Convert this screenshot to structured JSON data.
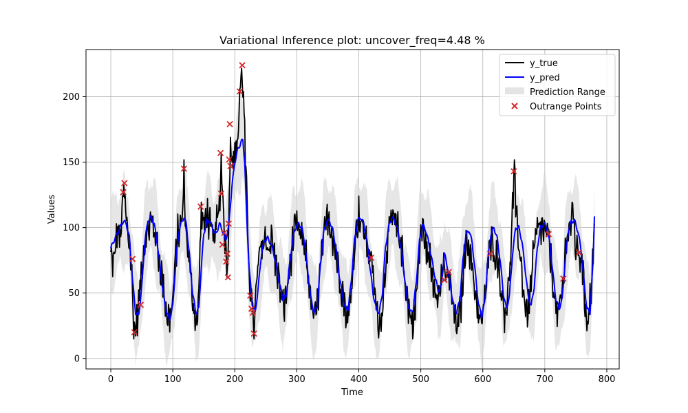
{
  "chart_data": {
    "type": "line",
    "title": "Variational Inference plot: uncover_freq=4.48 %",
    "xlabel": "Time",
    "ylabel": "Values",
    "xlim": [
      -40,
      820
    ],
    "ylim": [
      -8,
      236
    ],
    "xticks": [
      0,
      100,
      200,
      300,
      400,
      500,
      600,
      700,
      800
    ],
    "yticks": [
      0,
      50,
      100,
      150,
      200
    ],
    "grid": true,
    "legend_position": "top-right",
    "colors": {
      "y_true": "#000000",
      "y_pred": "#0000ff",
      "range": "#d9d9d9",
      "outrange": "#d62728"
    },
    "series": [
      {
        "name": "y_true",
        "kind": "line"
      },
      {
        "name": "y_pred",
        "kind": "line"
      },
      {
        "name": "Prediction Range",
        "kind": "band"
      },
      {
        "name": "Outrange Points",
        "kind": "scatter"
      }
    ],
    "true_anchors": [
      [
        0,
        78
      ],
      [
        5,
        72
      ],
      [
        10,
        98
      ],
      [
        15,
        90
      ],
      [
        19,
        115
      ],
      [
        21,
        130
      ],
      [
        24,
        110
      ],
      [
        28,
        95
      ],
      [
        33,
        72
      ],
      [
        37,
        25
      ],
      [
        40,
        22
      ],
      [
        44,
        35
      ],
      [
        48,
        60
      ],
      [
        52,
        80
      ],
      [
        56,
        92
      ],
      [
        60,
        98
      ],
      [
        65,
        105
      ],
      [
        70,
        100
      ],
      [
        75,
        85
      ],
      [
        80,
        70
      ],
      [
        85,
        55
      ],
      [
        90,
        35
      ],
      [
        95,
        30
      ],
      [
        100,
        45
      ],
      [
        105,
        80
      ],
      [
        108,
        95
      ],
      [
        112,
        100
      ],
      [
        116,
        110
      ],
      [
        118,
        145
      ],
      [
        120,
        105
      ],
      [
        125,
        80
      ],
      [
        130,
        55
      ],
      [
        135,
        35
      ],
      [
        140,
        25
      ],
      [
        143,
        70
      ],
      [
        146,
        113
      ],
      [
        150,
        100
      ],
      [
        155,
        112
      ],
      [
        160,
        100
      ],
      [
        165,
        90
      ],
      [
        170,
        100
      ],
      [
        175,
        115
      ],
      [
        178,
        150
      ],
      [
        181,
        120
      ],
      [
        185,
        85
      ],
      [
        188,
        70
      ],
      [
        190,
        100
      ],
      [
        193,
        170
      ],
      [
        197,
        150
      ],
      [
        200,
        155
      ],
      [
        205,
        170
      ],
      [
        208,
        200
      ],
      [
        211,
        222
      ],
      [
        214,
        200
      ],
      [
        217,
        155
      ],
      [
        220,
        110
      ],
      [
        224,
        60
      ],
      [
        228,
        40
      ],
      [
        231,
        20
      ],
      [
        235,
        55
      ],
      [
        240,
        80
      ],
      [
        245,
        88
      ],
      [
        250,
        90
      ],
      [
        255,
        85
      ],
      [
        260,
        92
      ],
      [
        265,
        75
      ],
      [
        270,
        65
      ],
      [
        275,
        45
      ],
      [
        280,
        40
      ],
      [
        285,
        55
      ],
      [
        290,
        75
      ],
      [
        295,
        95
      ],
      [
        300,
        100
      ],
      [
        305,
        95
      ],
      [
        310,
        88
      ],
      [
        315,
        80
      ],
      [
        320,
        55
      ],
      [
        325,
        35
      ],
      [
        330,
        30
      ],
      [
        335,
        50
      ],
      [
        340,
        80
      ],
      [
        345,
        95
      ],
      [
        350,
        110
      ],
      [
        355,
        100
      ],
      [
        360,
        88
      ],
      [
        365,
        75
      ],
      [
        370,
        60
      ],
      [
        375,
        48
      ],
      [
        380,
        32
      ],
      [
        385,
        35
      ],
      [
        390,
        65
      ],
      [
        395,
        95
      ],
      [
        400,
        110
      ],
      [
        405,
        100
      ],
      [
        410,
        95
      ],
      [
        415,
        82
      ],
      [
        420,
        76
      ],
      [
        425,
        55
      ],
      [
        430,
        30
      ],
      [
        435,
        28
      ],
      [
        440,
        50
      ],
      [
        445,
        85
      ],
      [
        450,
        100
      ],
      [
        455,
        108
      ],
      [
        460,
        100
      ],
      [
        465,
        95
      ],
      [
        470,
        80
      ],
      [
        475,
        60
      ],
      [
        480,
        40
      ],
      [
        485,
        28
      ],
      [
        490,
        32
      ],
      [
        495,
        60
      ],
      [
        500,
        100
      ],
      [
        505,
        95
      ],
      [
        510,
        80
      ],
      [
        515,
        75
      ],
      [
        520,
        60
      ],
      [
        525,
        55
      ],
      [
        530,
        45
      ],
      [
        535,
        75
      ],
      [
        538,
        62
      ],
      [
        541,
        60
      ],
      [
        545,
        66
      ],
      [
        550,
        45
      ],
      [
        555,
        30
      ],
      [
        560,
        25
      ],
      [
        565,
        40
      ],
      [
        570,
        75
      ],
      [
        575,
        95
      ],
      [
        580,
        80
      ],
      [
        585,
        60
      ],
      [
        590,
        45
      ],
      [
        595,
        28
      ],
      [
        600,
        30
      ],
      [
        605,
        55
      ],
      [
        610,
        80
      ],
      [
        615,
        90
      ],
      [
        620,
        80
      ],
      [
        625,
        75
      ],
      [
        630,
        50
      ],
      [
        635,
        35
      ],
      [
        640,
        45
      ],
      [
        645,
        80
      ],
      [
        648,
        115
      ],
      [
        651,
        143
      ],
      [
        654,
        105
      ],
      [
        658,
        90
      ],
      [
        662,
        70
      ],
      [
        666,
        50
      ],
      [
        670,
        35
      ],
      [
        675,
        40
      ],
      [
        680,
        70
      ],
      [
        685,
        90
      ],
      [
        690,
        100
      ],
      [
        695,
        100
      ],
      [
        700,
        95
      ],
      [
        706,
        93
      ],
      [
        710,
        75
      ],
      [
        715,
        50
      ],
      [
        720,
        30
      ],
      [
        725,
        40
      ],
      [
        730,
        60
      ],
      [
        735,
        95
      ],
      [
        740,
        100
      ],
      [
        745,
        110
      ],
      [
        750,
        85
      ],
      [
        755,
        80
      ],
      [
        760,
        75
      ],
      [
        765,
        40
      ],
      [
        770,
        30
      ],
      [
        775,
        55
      ],
      [
        780,
        100
      ]
    ],
    "pred_anchors": [
      [
        0,
        84
      ],
      [
        5,
        90
      ],
      [
        10,
        95
      ],
      [
        15,
        100
      ],
      [
        20,
        105
      ],
      [
        25,
        103
      ],
      [
        30,
        92
      ],
      [
        35,
        60
      ],
      [
        40,
        35
      ],
      [
        45,
        33
      ],
      [
        50,
        55
      ],
      [
        55,
        90
      ],
      [
        60,
        105
      ],
      [
        65,
        108
      ],
      [
        70,
        103
      ],
      [
        75,
        88
      ],
      [
        80,
        68
      ],
      [
        85,
        48
      ],
      [
        90,
        35
      ],
      [
        95,
        30
      ],
      [
        100,
        40
      ],
      [
        105,
        75
      ],
      [
        110,
        98
      ],
      [
        115,
        105
      ],
      [
        118,
        108
      ],
      [
        122,
        102
      ],
      [
        127,
        78
      ],
      [
        132,
        50
      ],
      [
        137,
        35
      ],
      [
        142,
        38
      ],
      [
        146,
        70
      ],
      [
        150,
        95
      ],
      [
        155,
        105
      ],
      [
        160,
        105
      ],
      [
        165,
        98
      ],
      [
        170,
        95
      ],
      [
        175,
        103
      ],
      [
        180,
        98
      ],
      [
        185,
        90
      ],
      [
        190,
        100
      ],
      [
        195,
        130
      ],
      [
        200,
        150
      ],
      [
        205,
        160
      ],
      [
        210,
        165
      ],
      [
        213,
        167
      ],
      [
        216,
        150
      ],
      [
        219,
        110
      ],
      [
        223,
        70
      ],
      [
        228,
        42
      ],
      [
        233,
        35
      ],
      [
        238,
        55
      ],
      [
        243,
        80
      ],
      [
        248,
        90
      ],
      [
        253,
        92
      ],
      [
        258,
        88
      ],
      [
        263,
        80
      ],
      [
        268,
        68
      ],
      [
        273,
        55
      ],
      [
        278,
        45
      ],
      [
        283,
        48
      ],
      [
        288,
        70
      ],
      [
        293,
        90
      ],
      [
        298,
        100
      ],
      [
        303,
        103
      ],
      [
        308,
        100
      ],
      [
        313,
        88
      ],
      [
        318,
        65
      ],
      [
        323,
        45
      ],
      [
        328,
        35
      ],
      [
        333,
        40
      ],
      [
        338,
        70
      ],
      [
        343,
        95
      ],
      [
        348,
        105
      ],
      [
        353,
        105
      ],
      [
        358,
        98
      ],
      [
        363,
        85
      ],
      [
        368,
        65
      ],
      [
        373,
        50
      ],
      [
        378,
        38
      ],
      [
        383,
        38
      ],
      [
        388,
        60
      ],
      [
        393,
        90
      ],
      [
        398,
        105
      ],
      [
        403,
        108
      ],
      [
        408,
        103
      ],
      [
        413,
        90
      ],
      [
        418,
        70
      ],
      [
        423,
        50
      ],
      [
        428,
        38
      ],
      [
        433,
        35
      ],
      [
        438,
        50
      ],
      [
        443,
        85
      ],
      [
        448,
        100
      ],
      [
        453,
        108
      ],
      [
        458,
        105
      ],
      [
        463,
        98
      ],
      [
        468,
        85
      ],
      [
        473,
        65
      ],
      [
        478,
        45
      ],
      [
        483,
        35
      ],
      [
        488,
        38
      ],
      [
        493,
        60
      ],
      [
        498,
        90
      ],
      [
        503,
        102
      ],
      [
        508,
        98
      ],
      [
        513,
        88
      ],
      [
        518,
        75
      ],
      [
        523,
        62
      ],
      [
        528,
        52
      ],
      [
        533,
        55
      ],
      [
        538,
        80
      ],
      [
        543,
        70
      ],
      [
        548,
        55
      ],
      [
        553,
        40
      ],
      [
        558,
        35
      ],
      [
        563,
        45
      ],
      [
        568,
        75
      ],
      [
        573,
        95
      ],
      [
        578,
        98
      ],
      [
        583,
        88
      ],
      [
        588,
        65
      ],
      [
        593,
        42
      ],
      [
        598,
        32
      ],
      [
        603,
        42
      ],
      [
        608,
        75
      ],
      [
        613,
        95
      ],
      [
        618,
        100
      ],
      [
        623,
        92
      ],
      [
        628,
        75
      ],
      [
        633,
        50
      ],
      [
        638,
        38
      ],
      [
        643,
        48
      ],
      [
        648,
        80
      ],
      [
        653,
        100
      ],
      [
        658,
        100
      ],
      [
        663,
        90
      ],
      [
        668,
        70
      ],
      [
        673,
        48
      ],
      [
        678,
        40
      ],
      [
        683,
        55
      ],
      [
        688,
        85
      ],
      [
        693,
        100
      ],
      [
        698,
        103
      ],
      [
        703,
        100
      ],
      [
        708,
        88
      ],
      [
        713,
        65
      ],
      [
        718,
        45
      ],
      [
        723,
        38
      ],
      [
        728,
        45
      ],
      [
        733,
        75
      ],
      [
        738,
        98
      ],
      [
        743,
        105
      ],
      [
        748,
        105
      ],
      [
        753,
        98
      ],
      [
        758,
        85
      ],
      [
        763,
        60
      ],
      [
        768,
        38
      ],
      [
        773,
        35
      ],
      [
        778,
        75
      ],
      [
        780,
        110
      ]
    ],
    "outrange_points": [
      [
        20,
        127
      ],
      [
        22,
        134
      ],
      [
        35,
        76
      ],
      [
        38,
        20
      ],
      [
        48,
        41
      ],
      [
        118,
        145
      ],
      [
        145,
        116
      ],
      [
        177,
        157
      ],
      [
        178,
        126
      ],
      [
        180,
        87
      ],
      [
        183,
        96
      ],
      [
        186,
        74
      ],
      [
        188,
        80
      ],
      [
        189,
        62
      ],
      [
        190,
        103
      ],
      [
        191,
        152
      ],
      [
        192,
        179
      ],
      [
        193,
        147
      ],
      [
        208,
        204
      ],
      [
        212,
        224
      ],
      [
        225,
        48
      ],
      [
        227,
        38
      ],
      [
        229,
        35
      ],
      [
        231,
        19
      ],
      [
        420,
        77
      ],
      [
        538,
        60
      ],
      [
        545,
        66
      ],
      [
        612,
        80
      ],
      [
        650,
        143
      ],
      [
        706,
        95
      ],
      [
        730,
        61
      ],
      [
        755,
        81
      ]
    ]
  }
}
